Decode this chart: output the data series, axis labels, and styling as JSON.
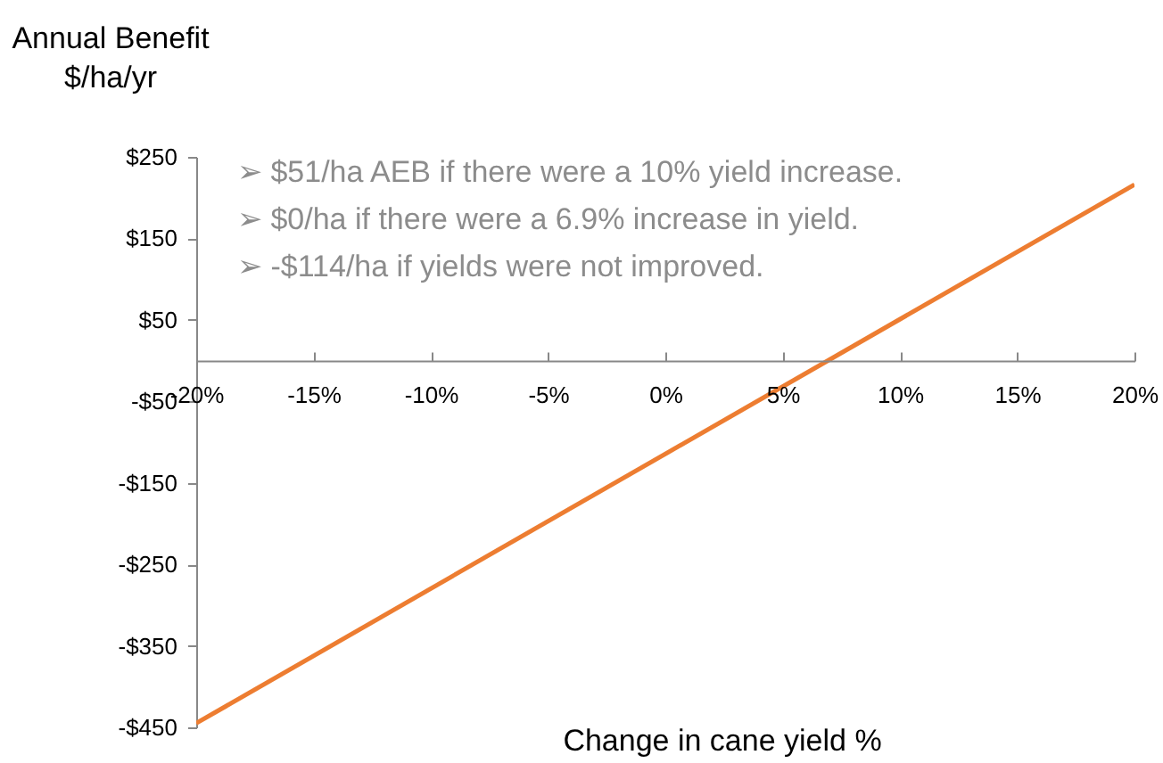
{
  "chart_data": {
    "type": "line",
    "ylabel": "Annual Benefit\n$/ha/yr",
    "xlabel": "Change in cane yield %",
    "annotations": [
      "➢ $51/ha AEB if there were a 10% yield increase.",
      "➢ $0/ha if there were a 6.9% increase in yield.",
      "➢ -$114/ha if yields were not improved."
    ],
    "x": [
      -20,
      20
    ],
    "series": [
      {
        "color": "#ed7d31",
        "values": [
          -445,
          216
        ]
      }
    ],
    "xlim": [
      -20,
      20
    ],
    "xticks": [
      {
        "value": -20,
        "label": "-20%"
      },
      {
        "value": -15,
        "label": "-15%"
      },
      {
        "value": -10,
        "label": "-10%"
      },
      {
        "value": -5,
        "label": "-5%"
      },
      {
        "value": 0,
        "label": "0%"
      },
      {
        "value": 5,
        "label": "5%"
      },
      {
        "value": 10,
        "label": "10%"
      },
      {
        "value": 15,
        "label": "15%"
      },
      {
        "value": 20,
        "label": "20%"
      }
    ],
    "ylim": [
      -450,
      250
    ],
    "yticks": [
      {
        "value": 250,
        "label": "$250"
      },
      {
        "value": 150,
        "label": "$150"
      },
      {
        "value": 50,
        "label": "$50"
      },
      {
        "value": -50,
        "label": "-$50"
      },
      {
        "value": -150,
        "label": "-$150"
      },
      {
        "value": -250,
        "label": "-$250"
      },
      {
        "value": -350,
        "label": "-$350"
      },
      {
        "value": -450,
        "label": "-$450"
      }
    ]
  }
}
